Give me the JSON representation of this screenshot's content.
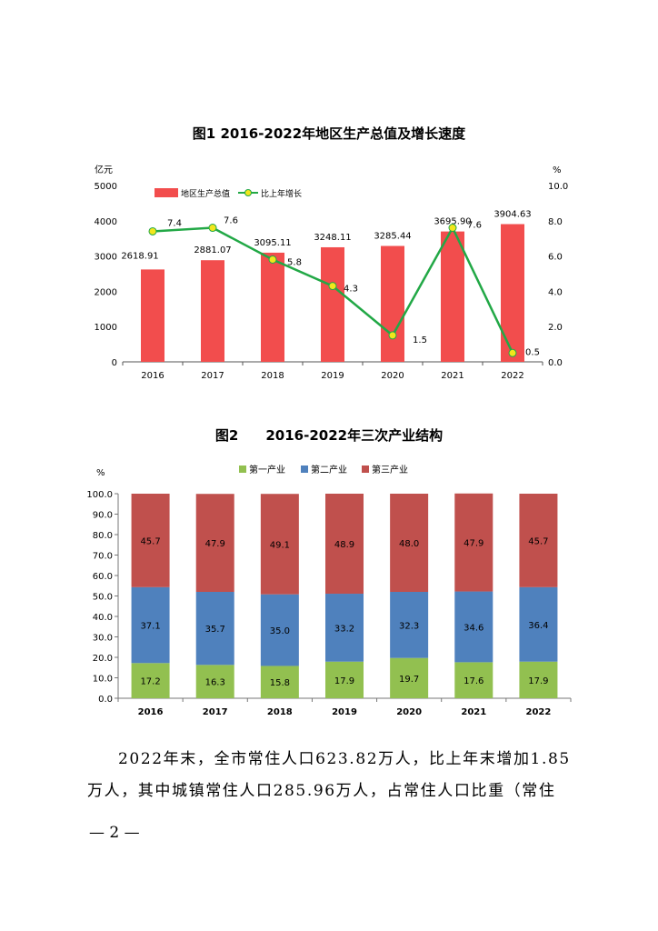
{
  "chart_data": [
    {
      "type": "bar+line",
      "title": "图1 2016-2022年地区生产总值及增长速度",
      "ylabel_left": "亿元",
      "ylabel_right": "%",
      "categories": [
        "2016",
        "2017",
        "2018",
        "2019",
        "2020",
        "2021",
        "2022"
      ],
      "left_ticks": [
        "0",
        "1000",
        "2000",
        "3000",
        "4000",
        "5000"
      ],
      "right_ticks": [
        "0.0",
        "2.0",
        "4.0",
        "6.0",
        "8.0",
        "10.0"
      ],
      "ylim_left": [
        0,
        5000
      ],
      "ylim_right": [
        0,
        10
      ],
      "series": [
        {
          "name": "地区生产总值",
          "kind": "bar",
          "axis": "left",
          "color": "#f24d4d",
          "values": [
            2618.91,
            2881.07,
            3095.11,
            3248.11,
            3285.44,
            3695.9,
            3904.63
          ],
          "labels": [
            "2618.91",
            "2881.07",
            "3095.11",
            "3248.11",
            "3285.44",
            "3695.90",
            "3904.63"
          ]
        },
        {
          "name": "比上年增长",
          "kind": "line",
          "axis": "right",
          "color": "#22a846",
          "marker_color": "#f2e61c",
          "values": [
            7.4,
            7.6,
            5.8,
            4.3,
            1.5,
            7.6,
            0.5
          ],
          "labels": [
            "7.4",
            "7.6",
            "5.8",
            "4.3",
            "1.5",
            "7.6",
            "0.5"
          ]
        }
      ]
    },
    {
      "type": "stacked_bar",
      "title": "图2　　2016-2022年三次产业结构",
      "ylabel": "%",
      "categories": [
        "2016",
        "2017",
        "2018",
        "2019",
        "2020",
        "2021",
        "2022"
      ],
      "ticks": [
        "0.0",
        "10.0",
        "20.0",
        "30.0",
        "40.0",
        "50.0",
        "60.0",
        "70.0",
        "80.0",
        "90.0",
        "100.0"
      ],
      "ylim": [
        0,
        100
      ],
      "series": [
        {
          "name": "第一产业",
          "color": "#92c050",
          "values": [
            17.2,
            16.3,
            15.8,
            17.9,
            19.7,
            17.6,
            17.9
          ],
          "labels": [
            "17.2",
            "16.3",
            "15.8",
            "17.9",
            "19.7",
            "17.6",
            "17.9"
          ]
        },
        {
          "name": "第二产业",
          "color": "#4f81bd",
          "values": [
            37.1,
            35.7,
            35.0,
            33.2,
            32.3,
            34.6,
            36.4
          ],
          "labels": [
            "37.1",
            "35.7",
            "35.0",
            "33.2",
            "32.3",
            "34.6",
            "36.4"
          ]
        },
        {
          "name": "第三产业",
          "color": "#c0504d",
          "values": [
            45.7,
            47.9,
            49.1,
            48.9,
            48.0,
            47.9,
            45.7
          ],
          "labels": [
            "45.7",
            "47.9",
            "49.1",
            "48.9",
            "48.0",
            "47.9",
            "45.7"
          ]
        }
      ]
    }
  ],
  "text": {
    "paragraph": "2022年末，全市常住人口623.82万人，比上年末增加1.85万人，其中城镇常住人口285.96万人，占常住人口比重（常住",
    "page_number": "— 2 —"
  }
}
